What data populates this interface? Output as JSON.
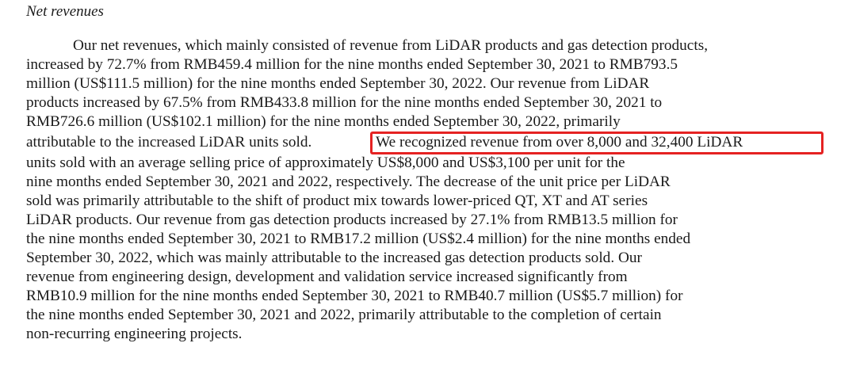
{
  "section": {
    "heading": "Net revenues"
  },
  "paragraph": {
    "lines": [
      "Our net revenues, which mainly consisted of revenue from LiDAR products and gas detection products,",
      "increased by 72.7% from RMB459.4 million for the nine months ended September 30, 2021 to RMB793.5",
      "million (US$111.5 million) for the nine months ended September 30, 2022. Our revenue from LiDAR",
      "products increased by 67.5% from RMB433.8 million for the nine months ended September 30, 2021 to",
      "RMB726.6 million (US$102.1 million) for the nine months ended September 30, 2022, primarily",
      "attributable to the increased LiDAR units sold.",
      "units sold with an average selling price of approximately US$8,000 and US$3,100 per unit for the",
      "nine months ended September 30, 2021 and 2022, respectively. The decrease of the unit price per LiDAR",
      "sold was primarily attributable to the shift of product mix towards lower-priced QT, XT and AT series",
      "LiDAR products. Our revenue from gas detection products increased by 27.1% from RMB13.5 million for",
      "the nine months ended September 30, 2021 to RMB17.2 million (US$2.4 million) for the nine months ended",
      "September 30, 2022, which was mainly attributable to the increased gas detection products sold. Our",
      "revenue from engineering design, development and validation service increased significantly from",
      "RMB10.9 million for the nine months ended September 30, 2021 to RMB40.7 million (US$5.7 million) for",
      "the nine months ended September 30, 2021 and 2022, primarily attributable to the completion of certain",
      "non-recurring engineering projects."
    ],
    "highlighted_text": "We recognized revenue from over 8,000 and 32,400 LiDAR"
  },
  "highlight_color": "#e52222"
}
